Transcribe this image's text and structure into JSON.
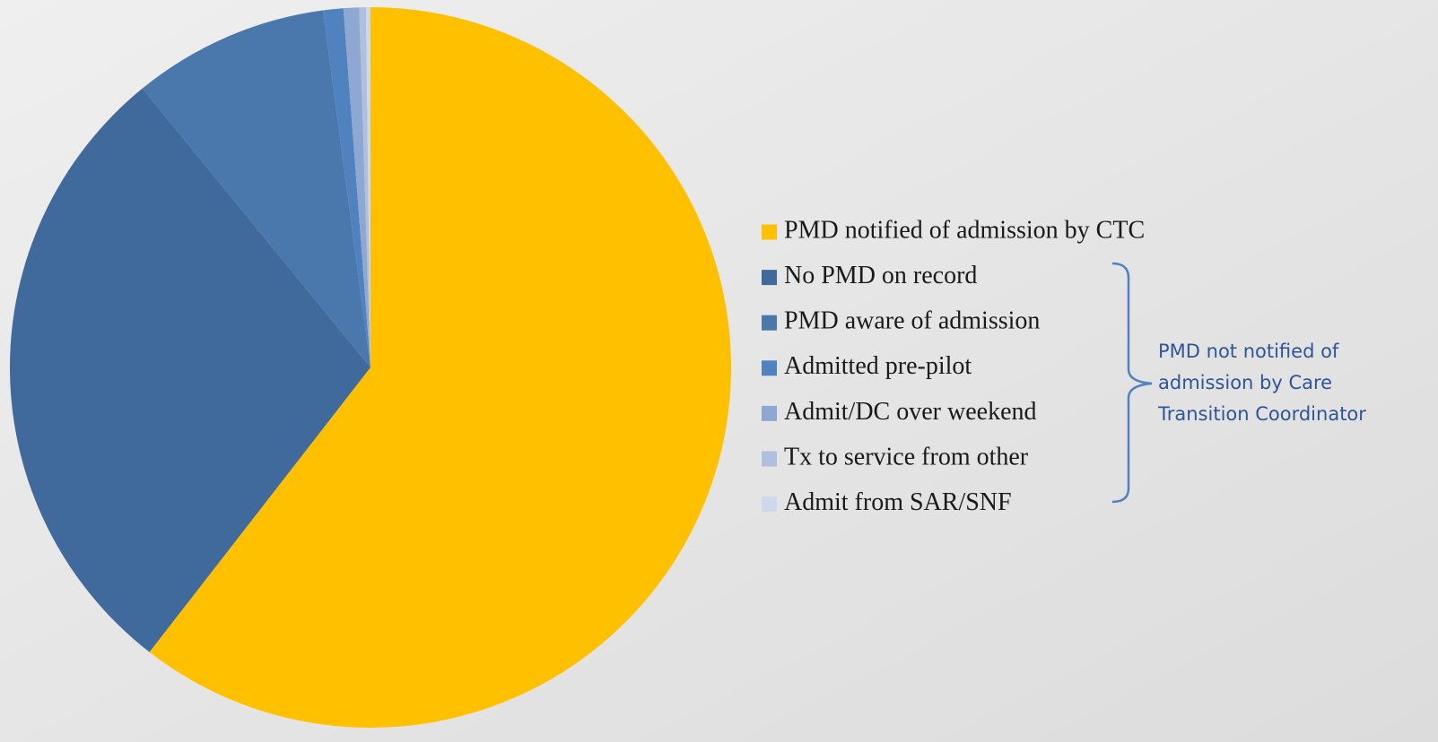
{
  "chart_data": {
    "type": "pie",
    "categories": [
      "PMD notified of admission by CTC",
      "No PMD on record",
      "PMD aware of admission",
      "Admitted pre-pilot",
      "Admit/DC over weekend",
      "Tx to service from other",
      "Admit from SAR/SNF"
    ],
    "values": [
      60.5,
      28.6,
      8.8,
      0.9,
      0.7,
      0.3,
      0.2
    ],
    "colors": [
      "#ffc000",
      "#416a9c",
      "#4a78ad",
      "#4f82be",
      "#8fa8d2",
      "#afc0de",
      "#cdd8eb"
    ],
    "legend": "right",
    "annotation": [
      "PMD not notified of",
      "admission by Care",
      "Transition Coordinator"
    ]
  }
}
